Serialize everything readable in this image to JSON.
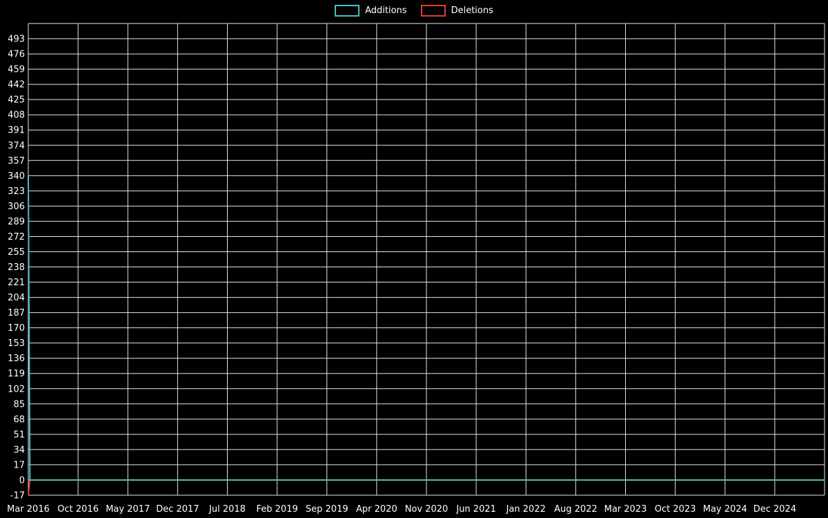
{
  "chart_data": {
    "type": "line",
    "title": "",
    "xlabel": "",
    "ylabel": "",
    "legend_position": "top",
    "grid": true,
    "background_color": "#000000",
    "grid_color": "#e6e6e6",
    "text_color": "#ffffff",
    "x_axis_note": "weekly points starting Mar 2016; tick labels every 7 months",
    "x_tick_labels": [
      "Mar 2016",
      "Oct 2016",
      "May 2017",
      "Dec 2017",
      "Jul 2018",
      "Feb 2019",
      "Sep 2019",
      "Apr 2020",
      "Nov 2020",
      "Jun 2021",
      "Jan 2022",
      "Aug 2022",
      "Mar 2023",
      "Oct 2023",
      "May 2024",
      "Dec 2024"
    ],
    "y_ticks": [
      -17,
      0,
      17,
      34,
      51,
      68,
      85,
      102,
      119,
      136,
      153,
      170,
      187,
      204,
      221,
      238,
      255,
      272,
      289,
      306,
      323,
      340,
      357,
      374,
      391,
      408,
      425,
      442,
      459,
      476,
      493
    ],
    "ylim": [
      -17,
      510
    ],
    "series": [
      {
        "name": "Additions",
        "color": "#4bc0c0",
        "first_point": {
          "x": "Mar 2016",
          "y": 340
        },
        "all_other_points_y": 0
      },
      {
        "name": "Deletions",
        "color": "#e53935",
        "first_point": {
          "x": "Mar 2016",
          "y": -17
        },
        "all_other_points_y": 0
      }
    ],
    "summary": "All weeks are 0 except the first week (Mar 2016): Additions spike to 340, Deletions dip to -17."
  }
}
